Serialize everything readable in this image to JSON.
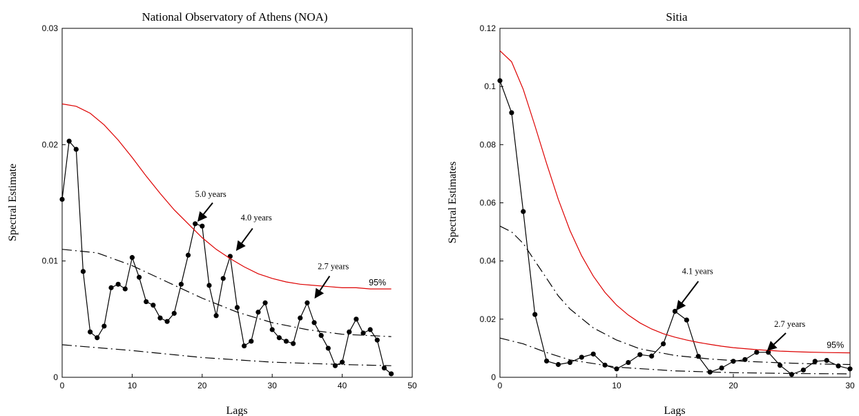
{
  "chart_data": [
    {
      "type": "line",
      "title": "National Observatory of Athens (NOA)",
      "xlabel": "Lags",
      "ylabel": "Spectral Estimate",
      "xlim": [
        0,
        50
      ],
      "ylim": [
        0,
        0.03
      ],
      "xticks": [
        "0",
        "10",
        "20",
        "30",
        "40",
        "50"
      ],
      "yticks": [
        "0",
        "0.01",
        "0.02",
        "0.03"
      ],
      "grid": false,
      "series": [
        {
          "name": "",
          "style": "line-markers",
          "color": "#000000",
          "x": [
            0,
            1,
            2,
            3,
            4,
            5,
            6,
            7,
            8,
            9,
            10,
            11,
            12,
            13,
            14,
            15,
            16,
            17,
            18,
            19,
            20,
            21,
            22,
            23,
            24,
            25,
            26,
            27,
            28,
            29,
            30,
            31,
            32,
            33,
            34,
            35,
            36,
            37,
            38,
            39,
            40,
            41,
            42,
            43,
            44,
            45,
            46,
            47
          ],
          "y": [
            0.0153,
            0.0203,
            0.0196,
            0.0091,
            0.0039,
            0.0034,
            0.0044,
            0.0077,
            0.008,
            0.0076,
            0.0103,
            0.0086,
            0.0065,
            0.0062,
            0.0051,
            0.0048,
            0.0055,
            0.008,
            0.0105,
            0.0132,
            0.013,
            0.0079,
            0.0053,
            0.0085,
            0.0104,
            0.006,
            0.0027,
            0.0031,
            0.0056,
            0.0064,
            0.0041,
            0.0034,
            0.0031,
            0.0029,
            0.0051,
            0.0064,
            0.0047,
            0.0036,
            0.0025,
            0.001,
            0.0013,
            0.0039,
            0.005,
            0.0038,
            0.0041,
            0.0032,
            0.0008,
            0.0003
          ]
        },
        {
          "name": "",
          "style": "solid",
          "color": "#dd0000",
          "x": [
            0,
            2,
            4,
            6,
            8,
            10,
            12,
            14,
            16,
            18,
            20,
            22,
            24,
            26,
            28,
            30,
            32,
            34,
            36,
            38,
            40,
            42,
            44,
            46,
            47
          ],
          "y": [
            0.0235,
            0.0233,
            0.0227,
            0.0217,
            0.0204,
            0.0189,
            0.0173,
            0.0158,
            0.0144,
            0.0132,
            0.012,
            0.011,
            0.0102,
            0.0095,
            0.0089,
            0.0085,
            0.0082,
            0.008,
            0.0079,
            0.0078,
            0.0077,
            0.0077,
            0.0076,
            0.0076,
            0.0076
          ]
        },
        {
          "name": "",
          "style": "dash-dot",
          "color": "#000000",
          "x": [
            0,
            5,
            10,
            15,
            20,
            25,
            30,
            35,
            40,
            47
          ],
          "y": [
            0.011,
            0.0107,
            0.0096,
            0.0082,
            0.0068,
            0.0056,
            0.0047,
            0.0041,
            0.0037,
            0.0035
          ]
        },
        {
          "name": "",
          "style": "dash-dot",
          "color": "#000000",
          "x": [
            0,
            10,
            20,
            30,
            40,
            47
          ],
          "y": [
            0.0028,
            0.0023,
            0.0017,
            0.0013,
            0.0011,
            0.001
          ]
        }
      ],
      "annotations": [
        {
          "text": "5.0 years",
          "x": 19.0,
          "y": 0.0155,
          "arrow_to": [
            19.5,
            0.0135
          ],
          "arrow_from": [
            21.5,
            0.015
          ]
        },
        {
          "text": "4.0 years",
          "x": 25.5,
          "y": 0.0135,
          "arrow_to": [
            25.0,
            0.011
          ],
          "arrow_from": [
            27.2,
            0.0128
          ]
        },
        {
          "text": "2.7 years",
          "x": 36.5,
          "y": 0.0093,
          "arrow_to": [
            36.2,
            0.0069
          ],
          "arrow_from": [
            38.2,
            0.0087
          ]
        },
        {
          "text": "95%",
          "x": 43.8,
          "y": 0.0079
        }
      ]
    },
    {
      "type": "line",
      "title": "Sitia",
      "xlabel": "Lags",
      "ylabel": "Spectral Estimates",
      "xlim": [
        0,
        30
      ],
      "ylim": [
        0,
        0.12
      ],
      "xticks": [
        "0",
        "10",
        "20",
        "30"
      ],
      "yticks": [
        "0",
        "0.02",
        "0.04",
        "0.06",
        "0.08",
        "0.1",
        "0.12"
      ],
      "grid": false,
      "series": [
        {
          "name": "",
          "style": "line-markers",
          "color": "#000000",
          "x": [
            0,
            1,
            2,
            3,
            4,
            5,
            6,
            7,
            8,
            9,
            10,
            11,
            12,
            13,
            14,
            15,
            16,
            17,
            18,
            19,
            20,
            21,
            22,
            23,
            24,
            25,
            26,
            27,
            28,
            29,
            30
          ],
          "y": [
            0.102,
            0.091,
            0.057,
            0.0216,
            0.0056,
            0.0044,
            0.0051,
            0.0069,
            0.008,
            0.0042,
            0.0029,
            0.0051,
            0.0078,
            0.0073,
            0.0115,
            0.0227,
            0.0197,
            0.0072,
            0.0018,
            0.0032,
            0.0055,
            0.0061,
            0.0086,
            0.0086,
            0.0041,
            0.001,
            0.0025,
            0.0055,
            0.0058,
            0.0039,
            0.0029
          ]
        },
        {
          "name": "",
          "style": "solid",
          "color": "#dd0000",
          "x": [
            0,
            1,
            2,
            3,
            4,
            5,
            6,
            7,
            8,
            9,
            10,
            11,
            12,
            13,
            14,
            15,
            16,
            17,
            18,
            19,
            20,
            22,
            24,
            26,
            28,
            30
          ],
          "y": [
            0.1123,
            0.1085,
            0.099,
            0.0865,
            0.0735,
            0.0612,
            0.0505,
            0.0418,
            0.0348,
            0.0292,
            0.0248,
            0.0214,
            0.0187,
            0.0166,
            0.015,
            0.0138,
            0.0128,
            0.012,
            0.0113,
            0.0107,
            0.0102,
            0.0095,
            0.009,
            0.0087,
            0.0085,
            0.0084
          ]
        },
        {
          "name": "",
          "style": "dash-dot",
          "color": "#000000",
          "x": [
            0,
            1,
            2,
            3,
            4,
            5,
            6,
            8,
            10,
            12,
            15,
            18,
            21,
            24,
            27,
            30
          ],
          "y": [
            0.052,
            0.05,
            0.046,
            0.04,
            0.034,
            0.028,
            0.0235,
            0.017,
            0.0128,
            0.0098,
            0.0075,
            0.0063,
            0.0055,
            0.005,
            0.0046,
            0.0044
          ]
        },
        {
          "name": "",
          "style": "dash-dot",
          "color": "#000000",
          "x": [
            0,
            2,
            4,
            6,
            10,
            15,
            20,
            25,
            30
          ],
          "y": [
            0.0135,
            0.0115,
            0.0085,
            0.006,
            0.0035,
            0.0022,
            0.0016,
            0.0013,
            0.0012
          ]
        }
      ],
      "annotations": [
        {
          "text": "4.1 years",
          "x": 15.6,
          "y": 0.0355,
          "arrow_to": [
            15.2,
            0.0235
          ],
          "arrow_from": [
            17.0,
            0.033
          ]
        },
        {
          "text": "2.7 years",
          "x": 23.5,
          "y": 0.0173,
          "arrow_to": [
            23.0,
            0.0095
          ],
          "arrow_from": [
            24.5,
            0.0152
          ]
        },
        {
          "text": "95%",
          "x": 28.0,
          "y": 0.0101
        }
      ]
    }
  ]
}
